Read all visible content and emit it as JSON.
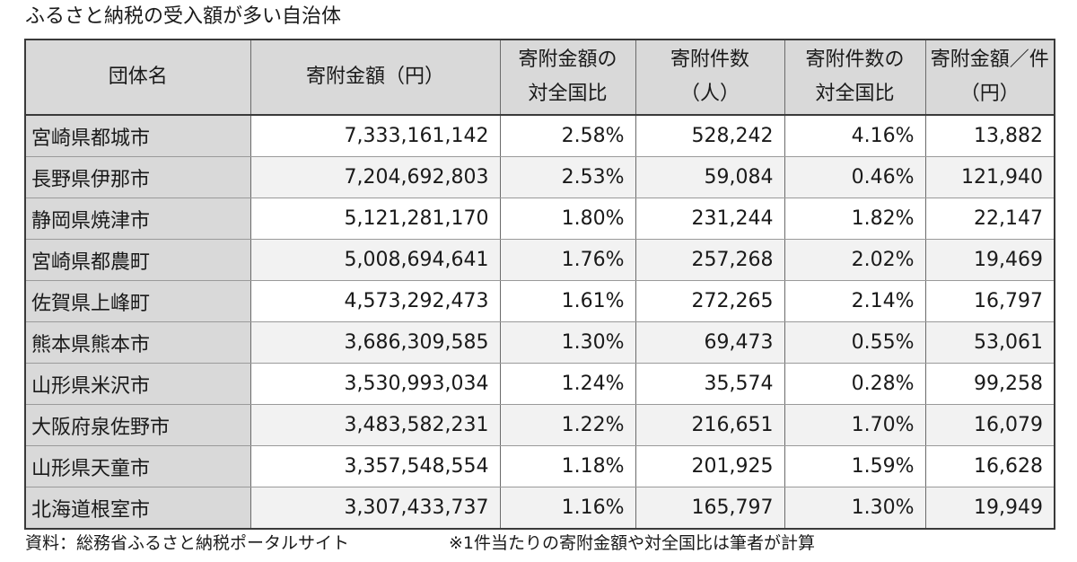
{
  "title": "ふるさと納税の受入額が多い自治体",
  "table": {
    "headers": [
      [
        "団体名"
      ],
      [
        "寄附金額（円）"
      ],
      [
        "寄附金額の",
        "対全国比"
      ],
      [
        "寄附件数",
        "（人）"
      ],
      [
        "寄附件数の",
        "対全国比"
      ],
      [
        "寄附金額／件",
        "（円）"
      ]
    ],
    "rows": [
      [
        "宮崎県都城市",
        "7,333,161,142",
        "2.58%",
        "528,242",
        "4.16%",
        "13,882"
      ],
      [
        "長野県伊那市",
        "7,204,692,803",
        "2.53%",
        "59,084",
        "0.46%",
        "121,940"
      ],
      [
        "静岡県焼津市",
        "5,121,281,170",
        "1.80%",
        "231,244",
        "1.82%",
        "22,147"
      ],
      [
        "宮崎県都農町",
        "5,008,694,641",
        "1.76%",
        "257,268",
        "2.02%",
        "19,469"
      ],
      [
        "佐賀県上峰町",
        "4,573,292,473",
        "1.61%",
        "272,265",
        "2.14%",
        "16,797"
      ],
      [
        "熊本県熊本市",
        "3,686,309,585",
        "1.30%",
        "69,473",
        "0.55%",
        "53,061"
      ],
      [
        "山形県米沢市",
        "3,530,993,034",
        "1.24%",
        "35,574",
        "0.28%",
        "99,258"
      ],
      [
        "大阪府泉佐野市",
        "3,483,582,231",
        "1.22%",
        "216,651",
        "1.70%",
        "16,079"
      ],
      [
        "山形県天童市",
        "3,357,548,554",
        "1.18%",
        "201,925",
        "1.59%",
        "16,628"
      ],
      [
        "北海道根室市",
        "3,307,433,737",
        "1.16%",
        "165,797",
        "1.30%",
        "19,949"
      ]
    ]
  },
  "footer": {
    "source": "資料：総務省ふるさと納税ポータルサイト",
    "note": "※1件当たりの寄附金額や対全国比は筆者が計算"
  }
}
